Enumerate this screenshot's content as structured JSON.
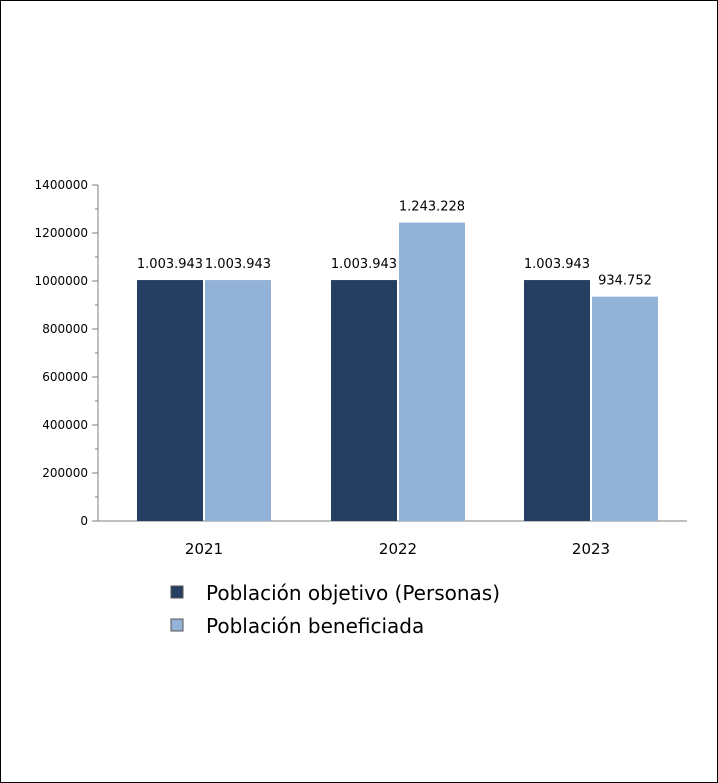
{
  "chart_data": {
    "type": "bar",
    "title": "",
    "xlabel": "",
    "ylabel": "",
    "categories": [
      "2021",
      "2022",
      "2023"
    ],
    "series": [
      {
        "name": "Población objetivo (Personas)",
        "color": "#253f63",
        "values": [
          1003943,
          1003943,
          1003943
        ],
        "labels": [
          "1.003.943",
          "1.003.943",
          "1.003.943"
        ]
      },
      {
        "name": "Población beneficiada",
        "color": "#93b2d8",
        "values": [
          1003943,
          1243228,
          934752
        ],
        "labels": [
          "1.003.943",
          "1.243.228",
          "934.752"
        ]
      }
    ],
    "ylim": [
      0,
      1400000
    ],
    "yticks": [
      0,
      200000,
      400000,
      600000,
      800000,
      1000000,
      1200000,
      1400000
    ],
    "grid": false,
    "legend_position": "bottom"
  }
}
